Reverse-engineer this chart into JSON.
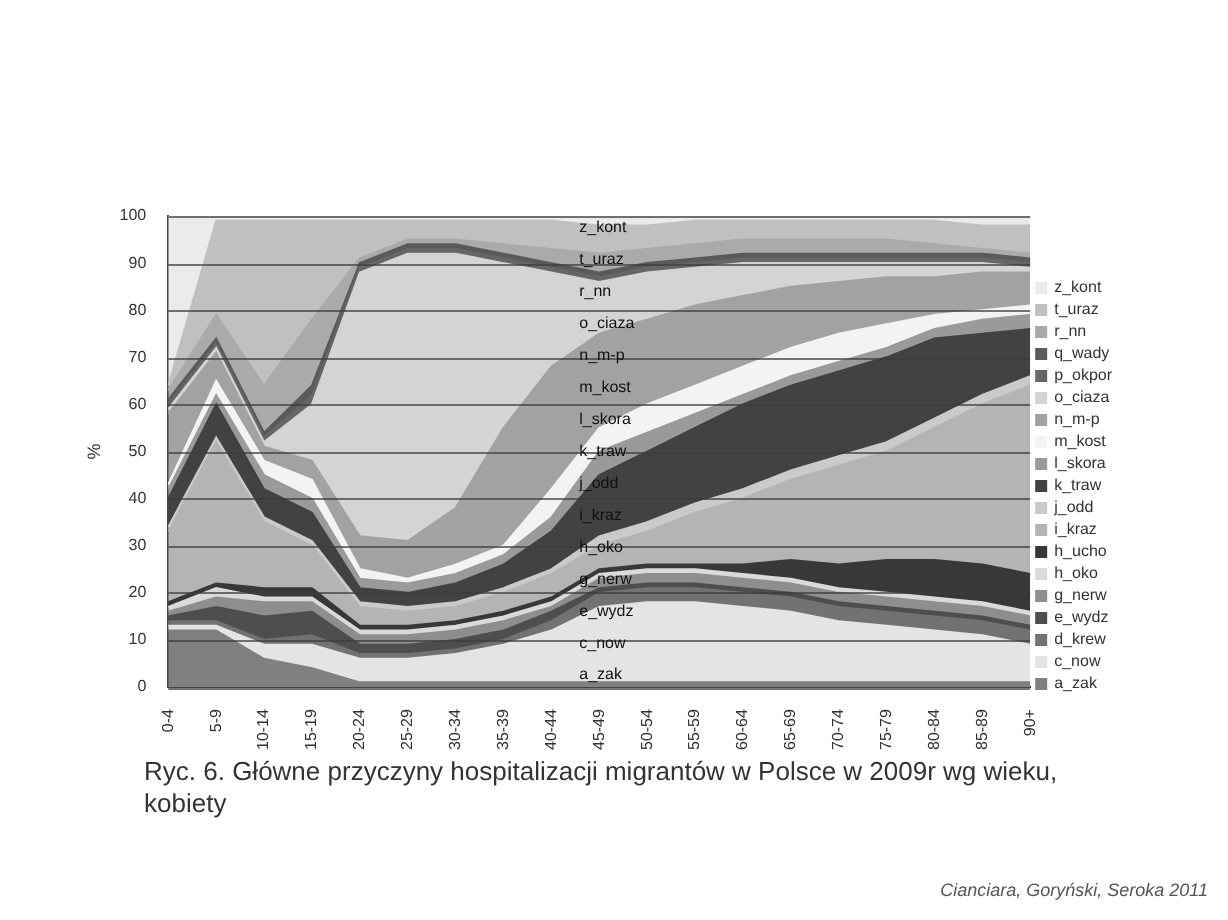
{
  "chart_data": {
    "type": "area",
    "stacked": true,
    "title": "Ryc. 6. Główne przyczyny hospitalizacji migrantów w Polsce w 2009r wg wieku, kobiety",
    "ylabel": "%",
    "categories": [
      "0-4",
      "5-9",
      "10-14",
      "15-19",
      "20-24",
      "25-29",
      "30-34",
      "35-39",
      "40-44",
      "45-49",
      "50-54",
      "55-59",
      "60-64",
      "65-69",
      "70-74",
      "75-79",
      "80-84",
      "85-89",
      "90+"
    ],
    "ylim": [
      0,
      100
    ],
    "yticks": [
      0,
      10,
      20,
      30,
      40,
      50,
      60,
      70,
      80,
      90,
      100
    ],
    "grid": "y",
    "legend": "right",
    "series": [
      {
        "name": "a_zak",
        "color": "#808080",
        "values": [
          12,
          12,
          6,
          4,
          1,
          1,
          1,
          1,
          1,
          1,
          1,
          1,
          1,
          1,
          1,
          1,
          1,
          1,
          1
        ]
      },
      {
        "name": "c_now",
        "color": "#e4e4e4",
        "values": [
          1,
          1,
          3,
          5,
          5,
          5,
          6,
          8,
          11,
          16,
          17,
          17,
          16,
          15,
          13,
          12,
          11,
          10,
          8
        ]
      },
      {
        "name": "d_krew",
        "color": "#727272",
        "values": [
          1,
          1,
          1,
          2,
          1,
          1,
          1,
          1,
          2,
          3,
          3,
          3,
          3,
          3,
          3,
          3,
          3,
          3,
          3
        ]
      },
      {
        "name": "e_wydz",
        "color": "#4e4e4e",
        "values": [
          1,
          3,
          5,
          5,
          2,
          2,
          2,
          2,
          2,
          1,
          1,
          1,
          1,
          1,
          1,
          1,
          1,
          1,
          1
        ]
      },
      {
        "name": "g_nerw",
        "color": "#8e8e8e",
        "values": [
          1,
          2,
          3,
          2,
          2,
          2,
          2,
          2,
          1,
          2,
          2,
          2,
          2,
          2,
          2,
          2,
          2,
          2,
          2
        ]
      },
      {
        "name": "h_oko",
        "color": "#dadada",
        "values": [
          1,
          2,
          1,
          1,
          1,
          1,
          1,
          1,
          1,
          1,
          1,
          1,
          1,
          1,
          1,
          1,
          1,
          1,
          1
        ]
      },
      {
        "name": "h_ucho",
        "color": "#383838",
        "values": [
          1,
          1,
          2,
          2,
          1,
          1,
          1,
          1,
          1,
          1,
          1,
          1,
          2,
          4,
          5,
          7,
          8,
          8,
          8
        ]
      },
      {
        "name": "i_kraz",
        "color": "#b4b4b4",
        "values": [
          15,
          30,
          14,
          9,
          4,
          3,
          3,
          4,
          5,
          5,
          7,
          11,
          14,
          17,
          21,
          23,
          28,
          34,
          40
        ]
      },
      {
        "name": "j_odd",
        "color": "#cacaca",
        "values": [
          1,
          1,
          1,
          1,
          1,
          1,
          1,
          1,
          1,
          2,
          2,
          2,
          2,
          2,
          2,
          2,
          2,
          2,
          2
        ]
      },
      {
        "name": "k_traw",
        "color": "#424242",
        "values": [
          6,
          7,
          6,
          6,
          3,
          3,
          4,
          5,
          8,
          13,
          15,
          16,
          18,
          18,
          18,
          18,
          17,
          13,
          10
        ]
      },
      {
        "name": "l_skora",
        "color": "#9a9a9a",
        "values": [
          2,
          2,
          3,
          3,
          2,
          2,
          2,
          2,
          3,
          5,
          4,
          3,
          2,
          2,
          2,
          2,
          2,
          3,
          3
        ]
      },
      {
        "name": "m_kost",
        "color": "#f3f3f3",
        "values": [
          1,
          3,
          3,
          4,
          2,
          1,
          2,
          2,
          6,
          5,
          6,
          6,
          6,
          6,
          6,
          5,
          3,
          2,
          2
        ]
      },
      {
        "name": "n_m-p",
        "color": "#a2a2a2",
        "values": [
          15,
          6,
          3,
          4,
          7,
          8,
          12,
          25,
          26,
          20,
          18,
          17,
          15,
          13,
          11,
          10,
          8,
          8,
          7
        ]
      },
      {
        "name": "o_ciaza",
        "color": "#d4d4d4",
        "values": [
          1,
          1,
          1,
          12,
          56,
          61,
          54,
          35,
          20,
          11,
          10,
          8,
          7,
          5,
          4,
          3,
          3,
          2,
          1
        ]
      },
      {
        "name": "p_okpor",
        "color": "#666666",
        "values": [
          1,
          1,
          1,
          2,
          1,
          1,
          1,
          1,
          1,
          1,
          1,
          1,
          1,
          1,
          1,
          1,
          1,
          1,
          1
        ]
      },
      {
        "name": "q_wady",
        "color": "#5a5a5a",
        "values": [
          1,
          1,
          1,
          2,
          1,
          1,
          1,
          1,
          1,
          1,
          1,
          1,
          1,
          1,
          1,
          1,
          1,
          1,
          1
        ]
      },
      {
        "name": "r_nn",
        "color": "#aaaaaa",
        "values": [
          2,
          5,
          10,
          14,
          1,
          1,
          1,
          2,
          3,
          4,
          3,
          3,
          3,
          3,
          3,
          3,
          2,
          1,
          1
        ]
      },
      {
        "name": "t_uraz",
        "color": "#c0c0c0",
        "values": [
          1,
          20,
          35,
          21,
          8,
          4,
          4,
          5,
          6,
          6,
          5,
          5,
          4,
          4,
          4,
          4,
          5,
          5,
          6
        ]
      },
      {
        "name": "z_kont",
        "color": "#ebebeb",
        "values": [
          36,
          1,
          1,
          1,
          1,
          1,
          1,
          1,
          1,
          2,
          2,
          1,
          1,
          1,
          1,
          1,
          1,
          2,
          2
        ]
      }
    ],
    "annotations": [
      "z_kont",
      "t_uraz",
      "r_nn",
      "o_ciaza",
      "n_m-p",
      "m_kost",
      "l_skora",
      "k_traw",
      "j_odd",
      "i_kraz",
      "h_oko",
      "g_nerw",
      "e_wydz",
      "c_now",
      "a_zak",
      "Cianciara, Goryński, Seroka 2011"
    ]
  }
}
